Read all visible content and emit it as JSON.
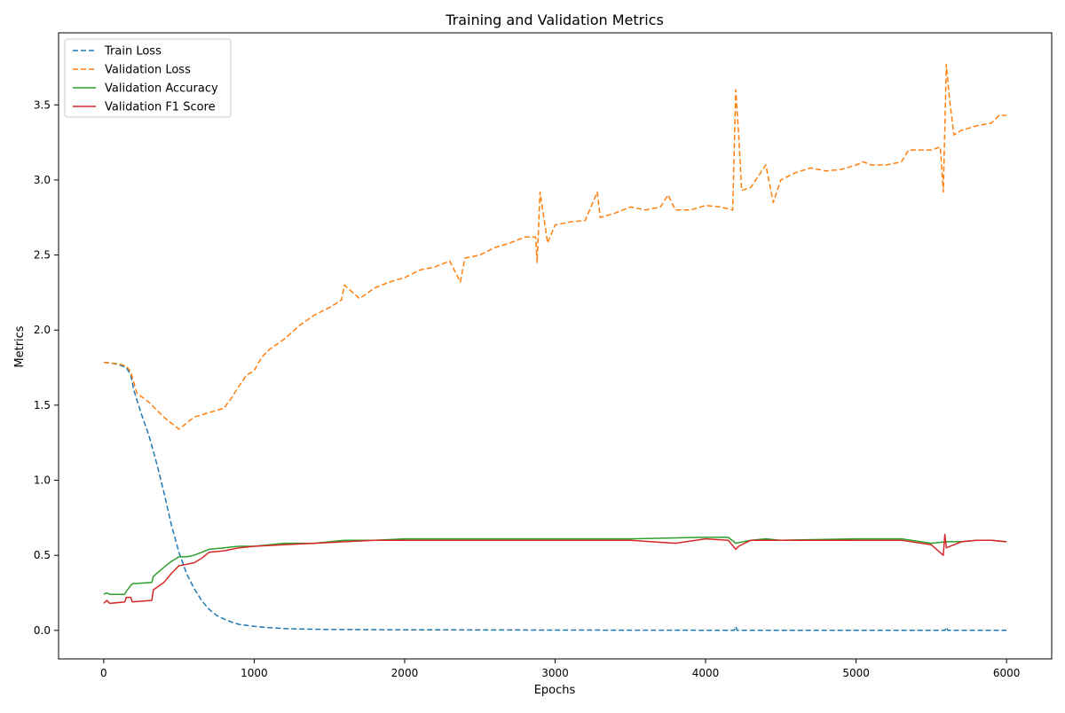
{
  "chart_data": {
    "type": "line",
    "title": "Training and Validation Metrics",
    "xlabel": "Epochs",
    "ylabel": "Metrics",
    "xlim": [
      -300,
      6300
    ],
    "ylim": [
      -0.19,
      3.98
    ],
    "x_ticks": [
      0,
      1000,
      2000,
      3000,
      4000,
      5000,
      6000
    ],
    "x_tick_labels": [
      "0",
      "1000",
      "2000",
      "3000",
      "4000",
      "5000",
      "6000"
    ],
    "y_ticks": [
      0.0,
      0.5,
      1.0,
      1.5,
      2.0,
      2.5,
      3.0,
      3.5
    ],
    "y_tick_labels": [
      "0.0",
      "0.5",
      "1.0",
      "1.5",
      "2.0",
      "2.5",
      "3.0",
      "3.5"
    ],
    "grid": false,
    "legend_position": "top-left",
    "series": [
      {
        "name": "Train Loss",
        "color": "#1f77b4",
        "dash": "dashed",
        "x": [
          0,
          50,
          100,
          150,
          180,
          200,
          250,
          300,
          350,
          400,
          450,
          500,
          550,
          600,
          650,
          700,
          750,
          800,
          850,
          900,
          1000,
          1100,
          1200,
          1300,
          1500,
          2000,
          3000,
          4000,
          4190,
          4200,
          4210,
          5000,
          5590,
          5600,
          5610,
          6000
        ],
        "y": [
          1.785,
          1.78,
          1.77,
          1.75,
          1.7,
          1.6,
          1.44,
          1.3,
          1.12,
          0.92,
          0.7,
          0.52,
          0.38,
          0.28,
          0.2,
          0.14,
          0.1,
          0.075,
          0.055,
          0.04,
          0.027,
          0.018,
          0.012,
          0.009,
          0.006,
          0.004,
          0.002,
          0.001,
          0.001,
          0.025,
          0.001,
          0.0,
          0.0,
          0.02,
          0.0,
          0.0
        ]
      },
      {
        "name": "Validation Loss",
        "color": "#ff7f0e",
        "dash": "dashed",
        "x": [
          0,
          100,
          150,
          180,
          200,
          220,
          300,
          400,
          500,
          550,
          600,
          700,
          800,
          850,
          900,
          950,
          1000,
          1050,
          1100,
          1200,
          1300,
          1400,
          1500,
          1580,
          1600,
          1700,
          1800,
          1900,
          2000,
          2100,
          2200,
          2300,
          2370,
          2400,
          2500,
          2600,
          2700,
          2800,
          2870,
          2880,
          2900,
          2950,
          3000,
          3100,
          3200,
          3280,
          3300,
          3400,
          3500,
          3600,
          3700,
          3750,
          3800,
          3900,
          4000,
          4100,
          4180,
          4200,
          4220,
          4240,
          4300,
          4400,
          4450,
          4500,
          4600,
          4700,
          4800,
          4900,
          5000,
          5050,
          5100,
          5200,
          5300,
          5350,
          5400,
          5500,
          5560,
          5580,
          5600,
          5620,
          5650,
          5700,
          5800,
          5900,
          5950,
          6000
        ],
        "y": [
          1.785,
          1.775,
          1.76,
          1.72,
          1.65,
          1.58,
          1.52,
          1.42,
          1.34,
          1.38,
          1.42,
          1.45,
          1.48,
          1.55,
          1.63,
          1.7,
          1.73,
          1.82,
          1.87,
          1.94,
          2.03,
          2.1,
          2.15,
          2.2,
          2.3,
          2.21,
          2.28,
          2.32,
          2.35,
          2.4,
          2.42,
          2.46,
          2.32,
          2.48,
          2.5,
          2.55,
          2.58,
          2.62,
          2.62,
          2.45,
          2.92,
          2.58,
          2.7,
          2.72,
          2.73,
          2.92,
          2.75,
          2.78,
          2.82,
          2.8,
          2.82,
          2.9,
          2.8,
          2.8,
          2.83,
          2.82,
          2.8,
          3.6,
          3.3,
          2.93,
          2.95,
          3.1,
          2.85,
          3.0,
          3.05,
          3.08,
          3.06,
          3.07,
          3.1,
          3.12,
          3.1,
          3.1,
          3.12,
          3.2,
          3.2,
          3.2,
          3.22,
          2.92,
          3.77,
          3.55,
          3.3,
          3.33,
          3.36,
          3.38,
          3.43,
          3.43
        ]
      },
      {
        "name": "Validation Accuracy",
        "color": "#2ca02c",
        "dash": "solid",
        "x": [
          0,
          20,
          40,
          140,
          150,
          180,
          190,
          320,
          330,
          400,
          450,
          500,
          550,
          600,
          650,
          700,
          800,
          900,
          1000,
          1200,
          1400,
          1600,
          1800,
          2000,
          2500,
          3000,
          3500,
          4000,
          4150,
          4200,
          4300,
          4400,
          4500,
          5000,
          5300,
          5500,
          5600,
          5700,
          5800,
          5900,
          6000
        ],
        "y": [
          0.24,
          0.25,
          0.24,
          0.24,
          0.26,
          0.3,
          0.31,
          0.32,
          0.36,
          0.42,
          0.46,
          0.49,
          0.49,
          0.5,
          0.52,
          0.54,
          0.55,
          0.56,
          0.56,
          0.58,
          0.58,
          0.6,
          0.6,
          0.61,
          0.61,
          0.61,
          0.61,
          0.62,
          0.62,
          0.58,
          0.6,
          0.61,
          0.6,
          0.61,
          0.61,
          0.58,
          0.59,
          0.59,
          0.6,
          0.6,
          0.59
        ]
      },
      {
        "name": "Validation F1 Score",
        "color": "#d62728",
        "dash": "solid",
        "x": [
          0,
          20,
          40,
          140,
          150,
          180,
          190,
          320,
          330,
          400,
          450,
          500,
          550,
          600,
          650,
          700,
          800,
          900,
          1000,
          1200,
          1400,
          1600,
          1800,
          2000,
          2500,
          3000,
          3500,
          3800,
          4000,
          4150,
          4200,
          4220,
          4300,
          4400,
          4500,
          5000,
          5300,
          5500,
          5580,
          5590,
          5600,
          5700,
          5800,
          5900,
          6000
        ],
        "y": [
          0.18,
          0.2,
          0.18,
          0.19,
          0.22,
          0.22,
          0.19,
          0.2,
          0.27,
          0.32,
          0.38,
          0.43,
          0.44,
          0.45,
          0.48,
          0.52,
          0.53,
          0.55,
          0.56,
          0.57,
          0.58,
          0.59,
          0.6,
          0.6,
          0.6,
          0.6,
          0.6,
          0.58,
          0.61,
          0.6,
          0.54,
          0.56,
          0.6,
          0.6,
          0.6,
          0.6,
          0.6,
          0.57,
          0.5,
          0.64,
          0.55,
          0.59,
          0.6,
          0.6,
          0.59
        ]
      }
    ]
  }
}
